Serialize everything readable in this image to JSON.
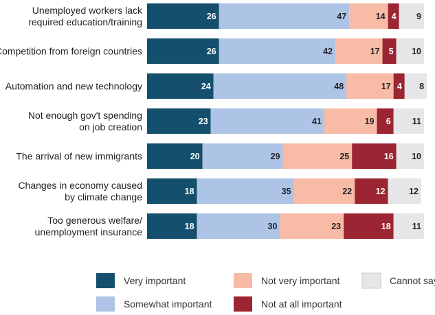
{
  "chart_data": {
    "type": "bar",
    "orientation": "horizontal",
    "stacked": true,
    "categories": [
      [
        "Unemployed workers lack",
        "required education/training"
      ],
      [
        "Competition from foreign countries"
      ],
      [
        "Automation and new technology"
      ],
      [
        "Not enough gov't spending",
        "on job creation"
      ],
      [
        "The arrival of new immigrants"
      ],
      [
        "Changes in economy caused",
        "by climate change"
      ],
      [
        "Too generous welfare/",
        "unemployment insurance"
      ]
    ],
    "series": [
      {
        "name": "Very important",
        "color": "#14506e",
        "label_color": "#ffffff",
        "values": [
          26,
          26,
          24,
          23,
          20,
          18,
          18
        ]
      },
      {
        "name": "Somewhat important",
        "color": "#aec4e6",
        "label_color": "#222222",
        "values": [
          47,
          42,
          48,
          41,
          29,
          35,
          30
        ]
      },
      {
        "name": "Not very important",
        "color": "#f7bba6",
        "label_color": "#222222",
        "values": [
          14,
          17,
          17,
          19,
          25,
          22,
          23
        ]
      },
      {
        "name": "Not at all important",
        "color": "#9b2532",
        "label_color": "#ffffff",
        "values": [
          4,
          5,
          4,
          6,
          16,
          12,
          18
        ]
      },
      {
        "name": "Cannot say",
        "color": "#e6e6e8",
        "label_color": "#222222",
        "values": [
          9,
          10,
          8,
          11,
          10,
          12,
          11
        ]
      }
    ],
    "xlim": [
      0,
      100
    ],
    "grid": false,
    "legend_position": "bottom",
    "title": "",
    "xlabel": "",
    "ylabel": ""
  }
}
